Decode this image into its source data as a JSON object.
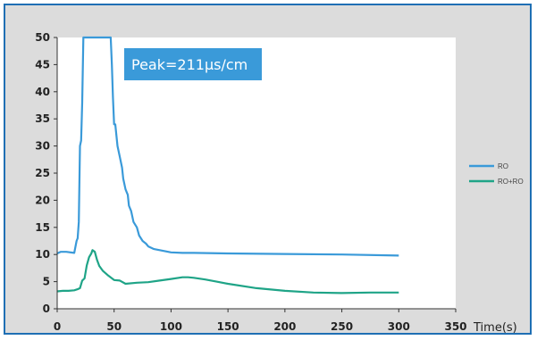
{
  "colors": {
    "ro": "#3a9ad9",
    "ro_ro": "#1fa487",
    "annotation_bg": "#3a9ad9",
    "frame": "#1f6fb4",
    "panel": "#dcdcdc"
  },
  "chart_data": {
    "type": "line",
    "title": "",
    "xlabel": "Time(s)",
    "ylabel": "",
    "xlim": [
      0,
      350
    ],
    "ylim": [
      0,
      50
    ],
    "xticks": [
      0,
      50,
      100,
      150,
      200,
      250,
      300,
      350
    ],
    "yticks": [
      0,
      5,
      10,
      15,
      20,
      25,
      30,
      35,
      40,
      45,
      50
    ],
    "grid": false,
    "legend": "right",
    "annotation": "Peak=211µs/cm",
    "series": [
      {
        "name": "RO",
        "color": "#3a9ad9",
        "x": [
          0,
          3,
          8,
          15,
          17,
          18,
          19,
          20,
          21,
          22,
          23,
          47,
          48,
          49,
          50,
          51,
          53,
          55,
          57,
          58,
          60,
          62,
          63,
          65,
          67,
          70,
          72,
          75,
          78,
          80,
          85,
          90,
          95,
          100,
          110,
          120,
          150,
          200,
          250,
          300
        ],
        "y": [
          10.2,
          10.5,
          10.5,
          10.3,
          12.5,
          13,
          16,
          30,
          31,
          38,
          50,
          50,
          45,
          39,
          34,
          34,
          30,
          28,
          26,
          24,
          22,
          21,
          19,
          18,
          16,
          15,
          13.5,
          12.5,
          12,
          11.5,
          11,
          10.8,
          10.6,
          10.4,
          10.3,
          10.3,
          10.2,
          10.1,
          10.0,
          9.8
        ]
      },
      {
        "name": "RO+RO",
        "color": "#1fa487",
        "x": [
          0,
          5,
          10,
          15,
          18,
          20,
          22,
          24,
          26,
          28,
          30,
          31,
          33,
          35,
          37,
          40,
          45,
          50,
          55,
          60,
          70,
          80,
          90,
          100,
          110,
          115,
          120,
          130,
          140,
          150,
          175,
          200,
          225,
          250,
          275,
          300
        ],
        "y": [
          3.2,
          3.3,
          3.3,
          3.4,
          3.6,
          3.8,
          5.2,
          5.6,
          8.0,
          9.5,
          10.2,
          10.8,
          10.5,
          9.0,
          7.9,
          7.0,
          6.1,
          5.3,
          5.2,
          4.6,
          4.8,
          4.9,
          5.2,
          5.5,
          5.8,
          5.8,
          5.7,
          5.4,
          5.0,
          4.6,
          3.8,
          3.3,
          3.0,
          2.9,
          3.0,
          3.0
        ]
      }
    ]
  }
}
